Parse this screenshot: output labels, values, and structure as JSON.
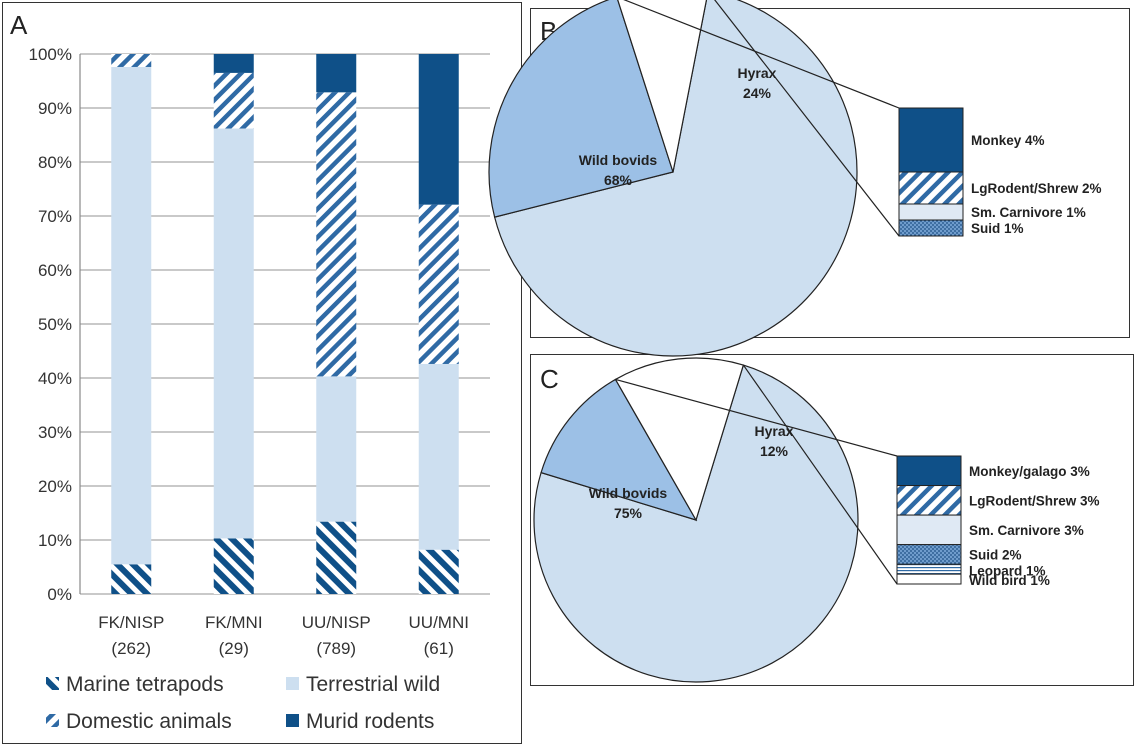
{
  "colors": {
    "navy": "#0f5088",
    "light": "#cddff0",
    "hyrax": "#9cc0e6",
    "small": "#dfe9f4",
    "suid_dots": "#3f78ae",
    "grid": "#a9a9a9"
  },
  "chart_data": [
    {
      "panel": "A",
      "type": "bar",
      "stacked": true,
      "ylim": [
        0,
        100
      ],
      "ytick_labels": [
        "0%",
        "10%",
        "20%",
        "30%",
        "40%",
        "50%",
        "60%",
        "70%",
        "80%",
        "90%",
        "100%"
      ],
      "grid": true,
      "legend_position": "bottom",
      "categories": [
        {
          "name": "FK/NISP",
          "n": "(262)"
        },
        {
          "name": "FK/MNI",
          "n": "(29)"
        },
        {
          "name": "UU/NISP",
          "n": "(789)"
        },
        {
          "name": "UU/MNI",
          "n": "(61)"
        }
      ],
      "series": [
        {
          "name": "Marine tetrapods",
          "pattern": "hatch-back",
          "values": [
            5.5,
            10.3,
            13.4,
            8.2
          ]
        },
        {
          "name": "Terrestrial wild",
          "pattern": "solid-light",
          "values": [
            92.1,
            75.9,
            26.9,
            34.4
          ]
        },
        {
          "name": "Domestic animals",
          "pattern": "hatch-fwd",
          "values": [
            2.4,
            10.3,
            52.6,
            29.5
          ]
        },
        {
          "name": "Murid rodents",
          "pattern": "solid-dark",
          "values": [
            0,
            3.5,
            7.1,
            27.9
          ]
        }
      ]
    },
    {
      "panel": "B",
      "type": "pie",
      "slices": [
        {
          "name": "Wild bovids",
          "value": 68,
          "label": "68%"
        },
        {
          "name": "Hyrax",
          "value": 24,
          "label": "24%"
        },
        {
          "name": "Other",
          "value": 8,
          "label": ""
        }
      ],
      "breakdown": [
        {
          "name": "Monkey 4%",
          "value": 4,
          "pattern": "solid-dark"
        },
        {
          "name": "LgRodent/Shrew 2%",
          "value": 2,
          "pattern": "hatch-fwd"
        },
        {
          "name": "Sm. Carnivore 1%",
          "value": 1,
          "pattern": "solid-pale"
        },
        {
          "name": "Suid 1%",
          "value": 1,
          "pattern": "dots"
        }
      ]
    },
    {
      "panel": "C",
      "type": "pie",
      "slices": [
        {
          "name": "Wild bovids",
          "value": 75,
          "label": "75%"
        },
        {
          "name": "Hyrax",
          "value": 12,
          "label": "12%"
        },
        {
          "name": "Other",
          "value": 13,
          "label": ""
        }
      ],
      "breakdown": [
        {
          "name": "Monkey/galago 3%",
          "value": 3,
          "pattern": "solid-dark"
        },
        {
          "name": "LgRodent/Shrew 3%",
          "value": 3,
          "pattern": "hatch-fwd"
        },
        {
          "name": "Sm. Carnivore 3%",
          "value": 3,
          "pattern": "solid-pale"
        },
        {
          "name": "Suid 2%",
          "value": 2,
          "pattern": "dots"
        },
        {
          "name": "Leopard 1%",
          "value": 1,
          "pattern": "lines"
        },
        {
          "name": "Wild bird 1%",
          "value": 1,
          "pattern": "solid-white"
        }
      ]
    }
  ]
}
